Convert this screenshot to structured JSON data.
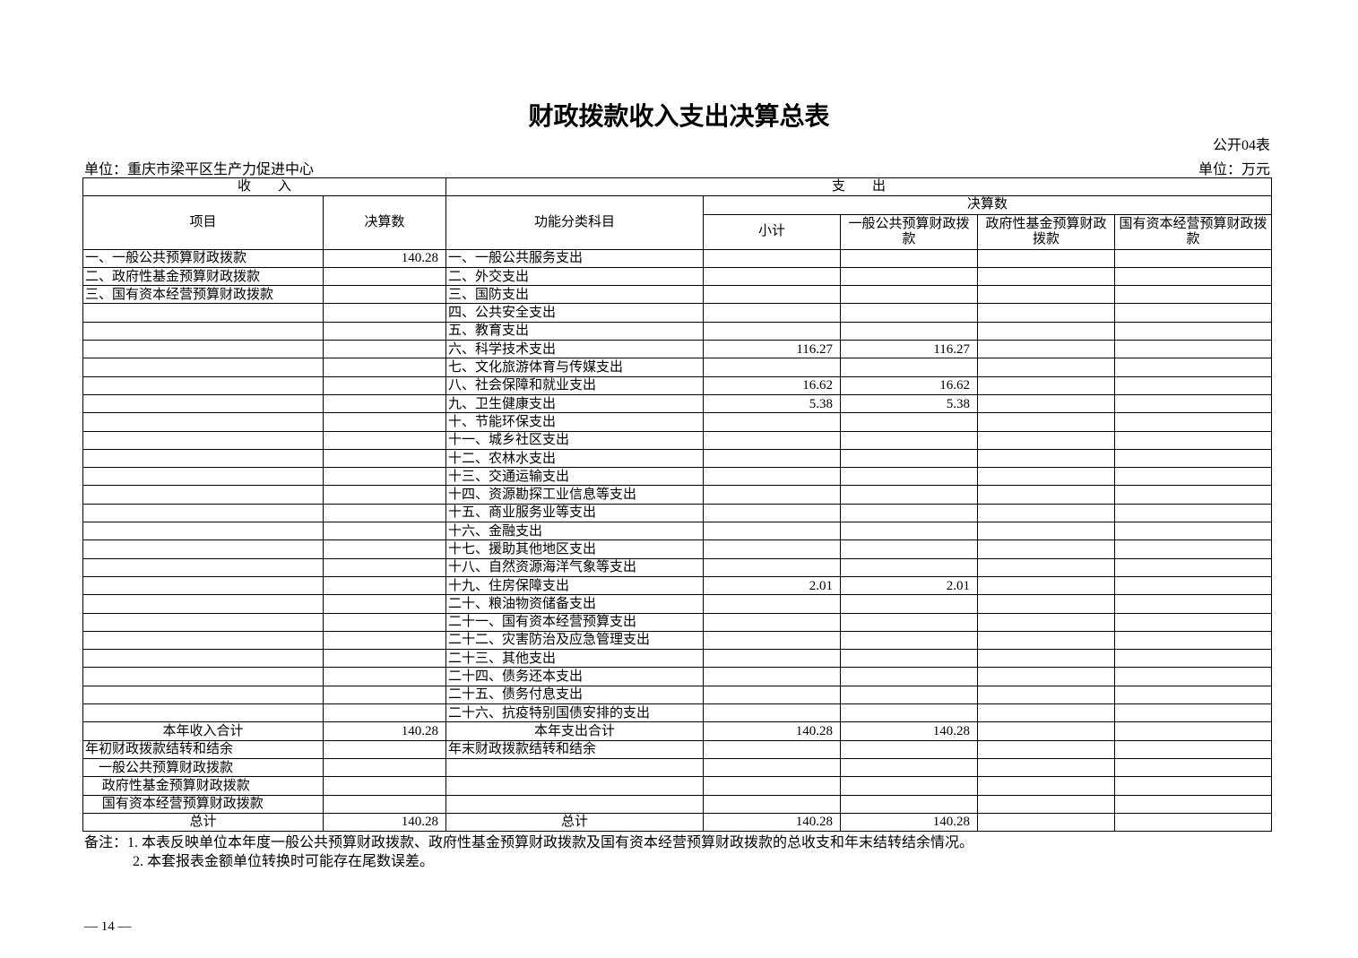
{
  "title": "财政拨款收入支出决算总表",
  "table_code": "公开04表",
  "unit_left": "单位：重庆市梁平区生产力促进中心",
  "unit_right": "单位：万元",
  "headers": {
    "income": "收　　入",
    "expense": "支　　出",
    "item": "项目",
    "amount": "决算数",
    "func": "功能分类科目",
    "final": "决算数",
    "subtotal": "小计",
    "general": "一般公共预算财政拨款",
    "fund": "政府性基金预算财政拨款",
    "soe": "国有资本经营预算财政拨款"
  },
  "rows": [
    [
      "一、一般公共预算财政拨款",
      "140.28",
      "一、一般公共服务支出",
      "",
      "",
      "",
      ""
    ],
    [
      "二、政府性基金预算财政拨款",
      "",
      "二、外交支出",
      "",
      "",
      "",
      ""
    ],
    [
      "三、国有资本经营预算财政拨款",
      "",
      "三、国防支出",
      "",
      "",
      "",
      ""
    ],
    [
      "",
      "",
      "四、公共安全支出",
      "",
      "",
      "",
      ""
    ],
    [
      "",
      "",
      "五、教育支出",
      "",
      "",
      "",
      ""
    ],
    [
      "",
      "",
      "六、科学技术支出",
      "116.27",
      "116.27",
      "",
      ""
    ],
    [
      "",
      "",
      "七、文化旅游体育与传媒支出",
      "",
      "",
      "",
      ""
    ],
    [
      "",
      "",
      "八、社会保障和就业支出",
      "16.62",
      "16.62",
      "",
      ""
    ],
    [
      "",
      "",
      "九、卫生健康支出",
      "5.38",
      "5.38",
      "",
      ""
    ],
    [
      "",
      "",
      "十、节能环保支出",
      "",
      "",
      "",
      ""
    ],
    [
      "",
      "",
      "十一、城乡社区支出",
      "",
      "",
      "",
      ""
    ],
    [
      "",
      "",
      "十二、农林水支出",
      "",
      "",
      "",
      ""
    ],
    [
      "",
      "",
      "十三、交通运输支出",
      "",
      "",
      "",
      ""
    ],
    [
      "",
      "",
      "十四、资源勘探工业信息等支出",
      "",
      "",
      "",
      ""
    ],
    [
      "",
      "",
      "十五、商业服务业等支出",
      "",
      "",
      "",
      ""
    ],
    [
      "",
      "",
      "十六、金融支出",
      "",
      "",
      "",
      ""
    ],
    [
      "",
      "",
      "十七、援助其他地区支出",
      "",
      "",
      "",
      ""
    ],
    [
      "",
      "",
      "十八、自然资源海洋气象等支出",
      "",
      "",
      "",
      ""
    ],
    [
      "",
      "",
      "十九、住房保障支出",
      "2.01",
      "2.01",
      "",
      ""
    ],
    [
      "",
      "",
      "二十、粮油物资储备支出",
      "",
      "",
      "",
      ""
    ],
    [
      "",
      "",
      "二十一、国有资本经营预算支出",
      "",
      "",
      "",
      ""
    ],
    [
      "",
      "",
      "二十二、灾害防治及应急管理支出",
      "",
      "",
      "",
      ""
    ],
    [
      "",
      "",
      "二十三、其他支出",
      "",
      "",
      "",
      ""
    ],
    [
      "",
      "",
      "二十四、债务还本支出",
      "",
      "",
      "",
      ""
    ],
    [
      "",
      "",
      "二十五、债务付息支出",
      "",
      "",
      "",
      ""
    ],
    [
      "",
      "",
      "二十六、抗疫特别国债安排的支出",
      "",
      "",
      "",
      ""
    ]
  ],
  "summary_rows": [
    {
      "cells": [
        "本年收入合计",
        "140.28",
        "本年支出合计",
        "140.28",
        "140.28",
        "",
        ""
      ],
      "center": true
    },
    {
      "cells": [
        "年初财政拨款结转和结余",
        "",
        "年末财政拨款结转和结余",
        "",
        "",
        "",
        ""
      ],
      "center": false
    },
    {
      "cells": [
        "　一般公共预算财政拨款",
        "",
        "",
        "",
        "",
        "",
        ""
      ],
      "center": false
    },
    {
      "cells": [
        "　 政府性基金预算财政拨款",
        "",
        "",
        "",
        "",
        "",
        ""
      ],
      "center": false
    },
    {
      "cells": [
        "　 国有资本经营预算财政拨款",
        "",
        "",
        "",
        "",
        "",
        ""
      ],
      "center": false
    },
    {
      "cells": [
        "总计",
        "140.28",
        "总计",
        "140.28",
        "140.28",
        "",
        ""
      ],
      "center": true
    }
  ],
  "notes": [
    "备注：1. 本表反映单位本年度一般公共预算财政拨款、政府性基金预算财政拨款及国有资本经营预算财政拨款的总收支和年末结转结余情况。",
    "2. 本套报表金额单位转换时可能存在尾数误差。"
  ],
  "page_number": "— 14 —"
}
